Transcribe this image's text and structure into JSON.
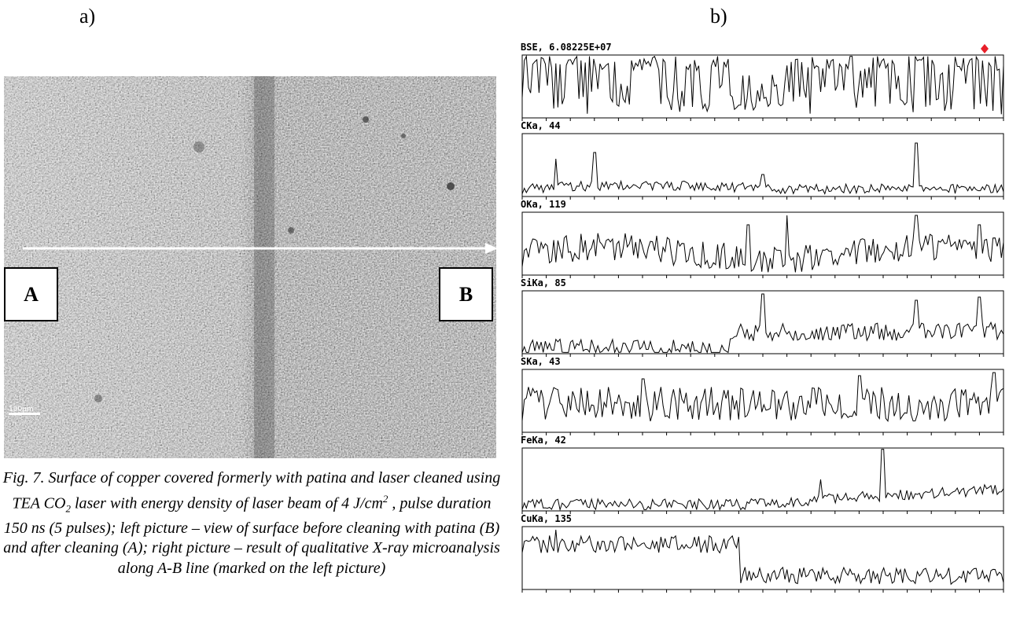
{
  "panel_labels": {
    "left": "a)",
    "right": "b)"
  },
  "micrograph": {
    "point_start": "A",
    "point_end": "B",
    "scale_bar_text": "100µm"
  },
  "caption": {
    "part1": "Fig. 7. Surface of copper covered formerly with patina and laser cleaned using TEA CO",
    "co2_subscript": "2",
    "part2": " laser with energy density of laser beam of 4 J/cm",
    "cm_superscript": "2",
    "part3": " , pulse duration 150 ns (5 pulses); left picture – view of surface before cleaning with patina (B) and after cleaning (A); right picture – result of qualitative X-ray microanalysis along A-B line (marked on the left picture)"
  },
  "chart_data": {
    "type": "line",
    "x_axis": "position along A-B line",
    "series": [
      {
        "name": "BSE, 6.08225E+07",
        "profile": "bse",
        "marker_color": "#e8202a"
      },
      {
        "name": "CKa, 44",
        "profile": "c"
      },
      {
        "name": "OKa, 119",
        "profile": "o"
      },
      {
        "name": "SiKa, 85",
        "profile": "si"
      },
      {
        "name": "SKa, 43",
        "profile": "s"
      },
      {
        "name": "FeKa, 42",
        "profile": "fe"
      },
      {
        "name": "CuKa, 135",
        "profile": "cu"
      }
    ]
  }
}
